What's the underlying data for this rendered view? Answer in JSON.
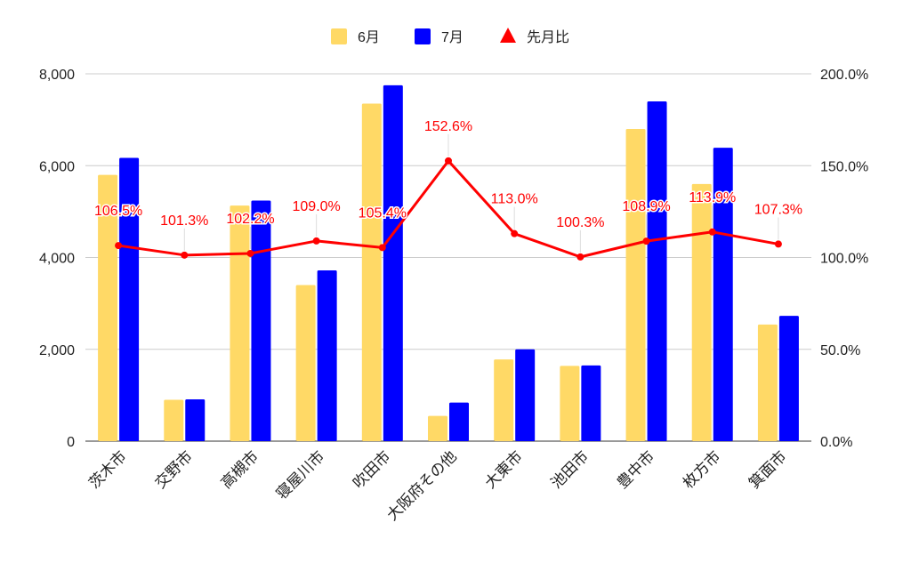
{
  "chart_data": {
    "type": "bar",
    "title": "",
    "categories": [
      "茨木市",
      "交野市",
      "高槻市",
      "寝屋川市",
      "吹田市",
      "大阪府その他",
      "大東市",
      "池田市",
      "豊中市",
      "枚方市",
      "箕面市"
    ],
    "series": [
      {
        "name": "6月",
        "type": "bar",
        "axis": "left",
        "color": "#FFD966",
        "values": [
          5800,
          900,
          5130,
          3400,
          7350,
          550,
          1780,
          1640,
          6800,
          5600,
          2540
        ]
      },
      {
        "name": "7月",
        "type": "bar",
        "axis": "left",
        "color": "#0000FF",
        "values": [
          6170,
          910,
          5240,
          3720,
          7750,
          840,
          2000,
          1650,
          7400,
          6390,
          2730
        ]
      },
      {
        "name": "先月比",
        "type": "line",
        "axis": "right",
        "color": "#FF0000",
        "values": [
          106.5,
          101.3,
          102.2,
          109.0,
          105.4,
          152.6,
          113.0,
          100.3,
          108.9,
          113.9,
          107.3
        ]
      }
    ],
    "data_labels": [
      "106.5%",
      "101.3%",
      "102.2%",
      "109.0%",
      "105.4%",
      "152.6%",
      "113.0%",
      "100.3%",
      "108.9%",
      "113.9%",
      "107.3%"
    ],
    "left_axis": {
      "ylim": [
        0,
        8000
      ],
      "ticks": [
        0,
        2000,
        4000,
        6000,
        8000
      ],
      "tick_labels": [
        "0",
        "2,000",
        "4,000",
        "6,000",
        "8,000"
      ]
    },
    "right_axis": {
      "ylim": [
        0,
        200
      ],
      "ticks": [
        0,
        50,
        100,
        150,
        200
      ],
      "tick_labels": [
        "0.0%",
        "50.0%",
        "100.0%",
        "150.0%",
        "200.0%"
      ]
    },
    "legend": {
      "position": "top-center",
      "entries": [
        "6月",
        "7月",
        "先月比"
      ]
    },
    "grid": true
  }
}
